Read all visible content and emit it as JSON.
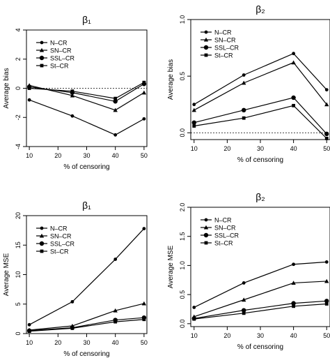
{
  "chart_data": [
    {
      "type": "line",
      "title": "β₁",
      "xlabel": "% of censoring",
      "ylabel": "Average bias",
      "x": [
        10,
        25,
        40,
        50
      ],
      "xticks": [
        10,
        20,
        30,
        40,
        50
      ],
      "yticks": [
        -4,
        -2,
        0,
        2,
        4
      ],
      "xlim": [
        9,
        51
      ],
      "ylim": [
        -4,
        4
      ],
      "reference_line": 0,
      "legend_position": "top-left",
      "series": [
        {
          "name": "N–CR",
          "marker": "circle",
          "values": [
            -0.8,
            -1.9,
            -3.2,
            -2.1
          ]
        },
        {
          "name": "SN–CR",
          "marker": "triangle",
          "values": [
            0.2,
            -0.5,
            -1.5,
            -0.3
          ]
        },
        {
          "name": "SSL–CR",
          "marker": "circle-large",
          "values": [
            0.1,
            -0.3,
            -0.9,
            0.3
          ]
        },
        {
          "name": "St–CR",
          "marker": "square",
          "values": [
            0.0,
            -0.2,
            -0.7,
            0.4
          ]
        }
      ]
    },
    {
      "type": "line",
      "title": "β₂",
      "xlabel": "% of censoring",
      "ylabel": "Average bias",
      "x": [
        10,
        25,
        40,
        50
      ],
      "xticks": [
        10,
        20,
        30,
        40,
        50
      ],
      "yticks": [
        "0.0",
        "0.5",
        "1.0"
      ],
      "xlim": [
        9,
        51
      ],
      "ylim": [
        -0.06,
        1.0
      ],
      "reference_line": 0,
      "legend_position": "top-left",
      "series": [
        {
          "name": "N–CR",
          "marker": "circle",
          "values": [
            0.25,
            0.51,
            0.7,
            0.38
          ]
        },
        {
          "name": "SN–CR",
          "marker": "triangle",
          "values": [
            0.2,
            0.44,
            0.62,
            0.25
          ]
        },
        {
          "name": "SSL–CR",
          "marker": "circle-large",
          "values": [
            0.09,
            0.2,
            0.31,
            -0.01
          ]
        },
        {
          "name": "St–CR",
          "marker": "square",
          "values": [
            0.06,
            0.13,
            0.24,
            -0.05
          ]
        }
      ]
    },
    {
      "type": "line",
      "title": "β₁",
      "xlabel": "% of censoring",
      "ylabel": "Average MSE",
      "x": [
        10,
        25,
        40,
        50
      ],
      "xticks": [
        10,
        20,
        30,
        40,
        50
      ],
      "yticks": [
        0,
        5,
        10,
        15,
        20
      ],
      "xlim": [
        9,
        51
      ],
      "ylim": [
        0,
        20
      ],
      "legend_position": "top-left",
      "series": [
        {
          "name": "N–CR",
          "marker": "circle",
          "values": [
            1.5,
            5.4,
            12.6,
            17.8
          ]
        },
        {
          "name": "SN–CR",
          "marker": "triangle",
          "values": [
            0.6,
            1.3,
            3.9,
            5.1
          ]
        },
        {
          "name": "SSL–CR",
          "marker": "circle-large",
          "values": [
            0.5,
            1.0,
            2.3,
            2.7
          ]
        },
        {
          "name": "St–CR",
          "marker": "square",
          "values": [
            0.4,
            0.9,
            2.0,
            2.4
          ]
        }
      ]
    },
    {
      "type": "line",
      "title": "β₂",
      "xlabel": "% of censoring",
      "ylabel": "Average MSE",
      "x": [
        10,
        25,
        40,
        50
      ],
      "xticks": [
        10,
        20,
        30,
        40,
        50
      ],
      "yticks": [
        "0.0",
        "0.5",
        "1.0",
        "1.5",
        "2.0"
      ],
      "xlim": [
        9,
        51
      ],
      "ylim": [
        -0.05,
        2.0
      ],
      "legend_position": "top-left",
      "series": [
        {
          "name": "N–CR",
          "marker": "circle",
          "values": [
            0.28,
            0.7,
            1.02,
            1.06
          ]
        },
        {
          "name": "SN–CR",
          "marker": "triangle",
          "values": [
            0.12,
            0.41,
            0.7,
            0.73
          ]
        },
        {
          "name": "SSL–CR",
          "marker": "circle-large",
          "values": [
            0.09,
            0.23,
            0.35,
            0.39
          ]
        },
        {
          "name": "St–CR",
          "marker": "square",
          "values": [
            0.08,
            0.18,
            0.3,
            0.34
          ]
        }
      ]
    }
  ]
}
